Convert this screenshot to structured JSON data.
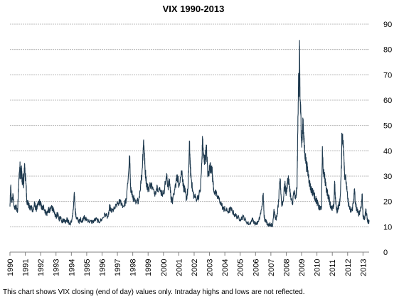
{
  "chart_data": {
    "type": "line",
    "title": "VIX 1990-2013",
    "xlabel": "",
    "ylabel": "",
    "footnote": "This chart shows VIX closing (end of day) values only. Intraday highs and lows are not reflected.",
    "xlim": [
      1990,
      2013.4
    ],
    "ylim": [
      0,
      90
    ],
    "y_ticks": [
      0,
      10,
      20,
      30,
      40,
      50,
      60,
      70,
      80,
      90
    ],
    "x_tick_labels": [
      "1990",
      "1991",
      "1992",
      "1993",
      "1994",
      "1995",
      "1996",
      "1997",
      "1998",
      "1999",
      "2000",
      "2001",
      "2002",
      "2003",
      "2004",
      "2005",
      "2006",
      "2007",
      "2008",
      "2009",
      "2010",
      "2011",
      "2012",
      "2013"
    ],
    "y_axis_position": "right",
    "grid": "horizontal dashed",
    "legend": "none",
    "series": [
      {
        "color": "#1f3a4f",
        "points": [
          [
            1990.0,
            18
          ],
          [
            1990.05,
            26
          ],
          [
            1990.1,
            20
          ],
          [
            1990.2,
            22
          ],
          [
            1990.3,
            17
          ],
          [
            1990.4,
            18
          ],
          [
            1990.5,
            16
          ],
          [
            1990.55,
            25
          ],
          [
            1990.6,
            30
          ],
          [
            1990.65,
            34
          ],
          [
            1990.7,
            29
          ],
          [
            1990.75,
            33
          ],
          [
            1990.8,
            27
          ],
          [
            1990.85,
            30
          ],
          [
            1990.9,
            26
          ],
          [
            1990.95,
            35
          ],
          [
            1991.0,
            30
          ],
          [
            1991.05,
            27
          ],
          [
            1991.1,
            20
          ],
          [
            1991.2,
            19
          ],
          [
            1991.3,
            17
          ],
          [
            1991.4,
            18
          ],
          [
            1991.5,
            16
          ],
          [
            1991.6,
            19
          ],
          [
            1991.7,
            17
          ],
          [
            1991.8,
            18
          ],
          [
            1991.9,
            20
          ],
          [
            1992.0,
            19
          ],
          [
            1992.1,
            17
          ],
          [
            1992.2,
            18
          ],
          [
            1992.3,
            16
          ],
          [
            1992.4,
            15
          ],
          [
            1992.5,
            17
          ],
          [
            1992.6,
            16
          ],
          [
            1992.7,
            18
          ],
          [
            1992.8,
            17
          ],
          [
            1992.9,
            15
          ],
          [
            1993.0,
            14
          ],
          [
            1993.1,
            15
          ],
          [
            1993.2,
            13
          ],
          [
            1993.3,
            14
          ],
          [
            1993.4,
            12
          ],
          [
            1993.5,
            13
          ],
          [
            1993.6,
            12
          ],
          [
            1993.7,
            13
          ],
          [
            1993.8,
            12
          ],
          [
            1993.9,
            11
          ],
          [
            1994.0,
            12
          ],
          [
            1994.1,
            15
          ],
          [
            1994.2,
            23
          ],
          [
            1994.25,
            17
          ],
          [
            1994.3,
            14
          ],
          [
            1994.4,
            13
          ],
          [
            1994.5,
            12
          ],
          [
            1994.6,
            13
          ],
          [
            1994.7,
            12
          ],
          [
            1994.8,
            14
          ],
          [
            1994.9,
            13
          ],
          [
            1995.0,
            13
          ],
          [
            1995.2,
            12
          ],
          [
            1995.4,
            12
          ],
          [
            1995.6,
            13
          ],
          [
            1995.8,
            12
          ],
          [
            1996.0,
            13
          ],
          [
            1996.2,
            15
          ],
          [
            1996.4,
            14
          ],
          [
            1996.5,
            18
          ],
          [
            1996.6,
            16
          ],
          [
            1996.8,
            17
          ],
          [
            1997.0,
            19
          ],
          [
            1997.2,
            20
          ],
          [
            1997.4,
            18
          ],
          [
            1997.6,
            21
          ],
          [
            1997.8,
            38
          ],
          [
            1997.85,
            26
          ],
          [
            1997.9,
            24
          ],
          [
            1998.0,
            22
          ],
          [
            1998.2,
            19
          ],
          [
            1998.4,
            21
          ],
          [
            1998.6,
            31
          ],
          [
            1998.7,
            44
          ],
          [
            1998.75,
            40
          ],
          [
            1998.8,
            33
          ],
          [
            1998.9,
            27
          ],
          [
            1999.0,
            25
          ],
          [
            1999.2,
            27
          ],
          [
            1999.4,
            23
          ],
          [
            1999.6,
            26
          ],
          [
            1999.8,
            24
          ],
          [
            2000.0,
            23
          ],
          [
            2000.2,
            30
          ],
          [
            2000.3,
            26
          ],
          [
            2000.4,
            28
          ],
          [
            2000.5,
            21
          ],
          [
            2000.6,
            20
          ],
          [
            2000.8,
            27
          ],
          [
            2000.9,
            30
          ],
          [
            2001.0,
            27
          ],
          [
            2001.2,
            32
          ],
          [
            2001.3,
            26
          ],
          [
            2001.4,
            24
          ],
          [
            2001.5,
            21
          ],
          [
            2001.6,
            25
          ],
          [
            2001.7,
            43
          ],
          [
            2001.75,
            33
          ],
          [
            2001.8,
            30
          ],
          [
            2001.9,
            24
          ],
          [
            2002.0,
            22
          ],
          [
            2002.2,
            21
          ],
          [
            2002.4,
            24
          ],
          [
            2002.5,
            35
          ],
          [
            2002.55,
            45
          ],
          [
            2002.6,
            38
          ],
          [
            2002.7,
            36
          ],
          [
            2002.8,
            41
          ],
          [
            2002.9,
            30
          ],
          [
            2003.0,
            33
          ],
          [
            2003.15,
            34
          ],
          [
            2003.2,
            29
          ],
          [
            2003.3,
            24
          ],
          [
            2003.5,
            22
          ],
          [
            2003.7,
            20
          ],
          [
            2003.9,
            17
          ],
          [
            2004.0,
            17
          ],
          [
            2004.2,
            16
          ],
          [
            2004.4,
            17
          ],
          [
            2004.6,
            15
          ],
          [
            2004.8,
            14
          ],
          [
            2005.0,
            13
          ],
          [
            2005.2,
            14
          ],
          [
            2005.4,
            12
          ],
          [
            2005.6,
            11
          ],
          [
            2005.8,
            13
          ],
          [
            2006.0,
            11
          ],
          [
            2006.2,
            12
          ],
          [
            2006.4,
            17
          ],
          [
            2006.5,
            23
          ],
          [
            2006.55,
            15
          ],
          [
            2006.6,
            13
          ],
          [
            2006.8,
            11
          ],
          [
            2007.0,
            11
          ],
          [
            2007.1,
            10
          ],
          [
            2007.2,
            17
          ],
          [
            2007.3,
            13
          ],
          [
            2007.4,
            14
          ],
          [
            2007.5,
            20
          ],
          [
            2007.6,
            29
          ],
          [
            2007.7,
            19
          ],
          [
            2007.8,
            20
          ],
          [
            2007.9,
            27
          ],
          [
            2008.0,
            23
          ],
          [
            2008.1,
            29
          ],
          [
            2008.2,
            27
          ],
          [
            2008.3,
            21
          ],
          [
            2008.4,
            19
          ],
          [
            2008.5,
            24
          ],
          [
            2008.6,
            21
          ],
          [
            2008.7,
            25
          ],
          [
            2008.75,
            47
          ],
          [
            2008.8,
            70
          ],
          [
            2008.83,
            62
          ],
          [
            2008.87,
            80
          ],
          [
            2008.9,
            60
          ],
          [
            2008.95,
            54
          ],
          [
            2009.0,
            43
          ],
          [
            2009.05,
            46
          ],
          [
            2009.1,
            52
          ],
          [
            2009.15,
            44
          ],
          [
            2009.2,
            40
          ],
          [
            2009.3,
            35
          ],
          [
            2009.4,
            32
          ],
          [
            2009.5,
            28
          ],
          [
            2009.6,
            25
          ],
          [
            2009.7,
            24
          ],
          [
            2009.8,
            23
          ],
          [
            2009.9,
            21
          ],
          [
            2010.0,
            20
          ],
          [
            2010.1,
            18
          ],
          [
            2010.2,
            17
          ],
          [
            2010.3,
            18
          ],
          [
            2010.35,
            40
          ],
          [
            2010.4,
            33
          ],
          [
            2010.5,
            30
          ],
          [
            2010.6,
            25
          ],
          [
            2010.7,
            23
          ],
          [
            2010.8,
            21
          ],
          [
            2010.9,
            18
          ],
          [
            2011.0,
            17
          ],
          [
            2011.1,
            18
          ],
          [
            2011.15,
            28
          ],
          [
            2011.2,
            21
          ],
          [
            2011.3,
            16
          ],
          [
            2011.4,
            18
          ],
          [
            2011.5,
            20
          ],
          [
            2011.6,
            34
          ],
          [
            2011.62,
            47
          ],
          [
            2011.7,
            43
          ],
          [
            2011.75,
            40
          ],
          [
            2011.8,
            31
          ],
          [
            2011.9,
            28
          ],
          [
            2012.0,
            21
          ],
          [
            2012.1,
            18
          ],
          [
            2012.2,
            16
          ],
          [
            2012.3,
            17
          ],
          [
            2012.4,
            21
          ],
          [
            2012.45,
            25
          ],
          [
            2012.5,
            19
          ],
          [
            2012.6,
            17
          ],
          [
            2012.7,
            15
          ],
          [
            2012.8,
            16
          ],
          [
            2012.9,
            19
          ],
          [
            2012.95,
            23
          ],
          [
            2013.0,
            14
          ],
          [
            2013.1,
            13
          ],
          [
            2013.2,
            17
          ],
          [
            2013.3,
            12
          ],
          [
            2013.4,
            12
          ]
        ]
      }
    ]
  }
}
